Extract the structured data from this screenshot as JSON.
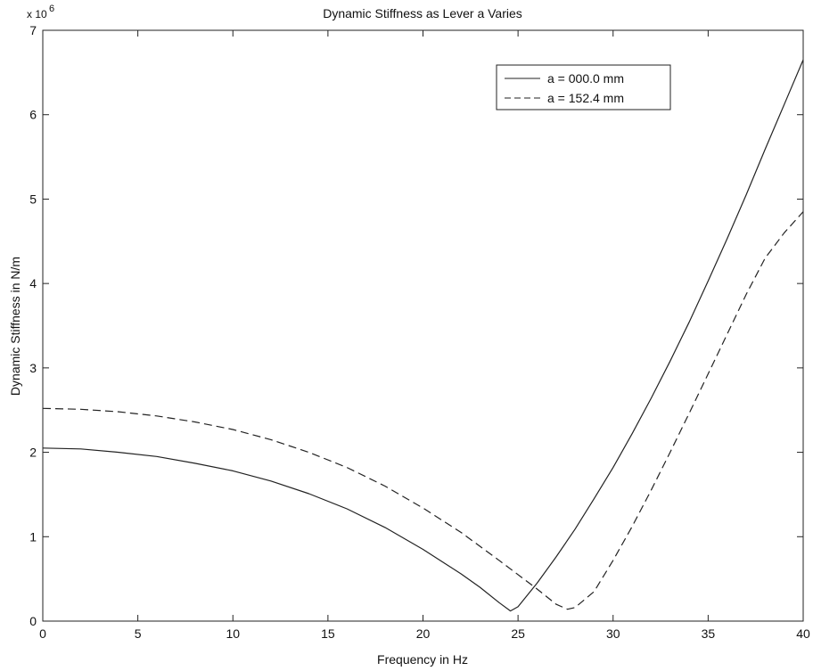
{
  "chart_data": {
    "type": "line",
    "title": "Dynamic Stiffness as Lever a Varies",
    "xlabel": "Frequency in Hz",
    "ylabel": "Dynamic Stiffness in N/m",
    "y_multiplier_base": "x 10",
    "y_multiplier_exp": "6",
    "xlim": [
      0,
      40
    ],
    "ylim": [
      0,
      7
    ],
    "xticks": [
      0,
      5,
      10,
      15,
      20,
      25,
      30,
      35,
      40
    ],
    "yticks": [
      0,
      1,
      2,
      3,
      4,
      5,
      6,
      7
    ],
    "grid": false,
    "legend_position": "top-right",
    "series": [
      {
        "name": "a = 000.0 mm",
        "style": "solid",
        "color": "#222222",
        "x": [
          0,
          2,
          4,
          6,
          8,
          10,
          12,
          14,
          16,
          18,
          20,
          22,
          23,
          24,
          24.6,
          25,
          26,
          27,
          28,
          29,
          30,
          31,
          32,
          33,
          34,
          35,
          36,
          37,
          38,
          39,
          40
        ],
        "y": [
          2.05,
          2.04,
          2.0,
          1.95,
          1.87,
          1.78,
          1.66,
          1.51,
          1.33,
          1.11,
          0.85,
          0.56,
          0.4,
          0.22,
          0.12,
          0.17,
          0.45,
          0.76,
          1.09,
          1.45,
          1.82,
          2.22,
          2.64,
          3.08,
          3.54,
          4.03,
          4.53,
          5.05,
          5.59,
          6.12,
          6.65
        ]
      },
      {
        "name": "a = 152.4 mm",
        "style": "dashed",
        "color": "#222222",
        "x": [
          0,
          2,
          4,
          6,
          8,
          10,
          12,
          14,
          16,
          18,
          20,
          22,
          24,
          26,
          27,
          27.6,
          28,
          29,
          30,
          31,
          32,
          33,
          34,
          35,
          36,
          37,
          38,
          39,
          40
        ],
        "y": [
          2.52,
          2.51,
          2.48,
          2.43,
          2.36,
          2.27,
          2.15,
          2.0,
          1.82,
          1.6,
          1.34,
          1.05,
          0.72,
          0.38,
          0.2,
          0.14,
          0.16,
          0.35,
          0.72,
          1.12,
          1.55,
          2.0,
          2.46,
          2.93,
          3.4,
          3.87,
          4.3,
          4.6,
          4.85
        ]
      }
    ]
  }
}
